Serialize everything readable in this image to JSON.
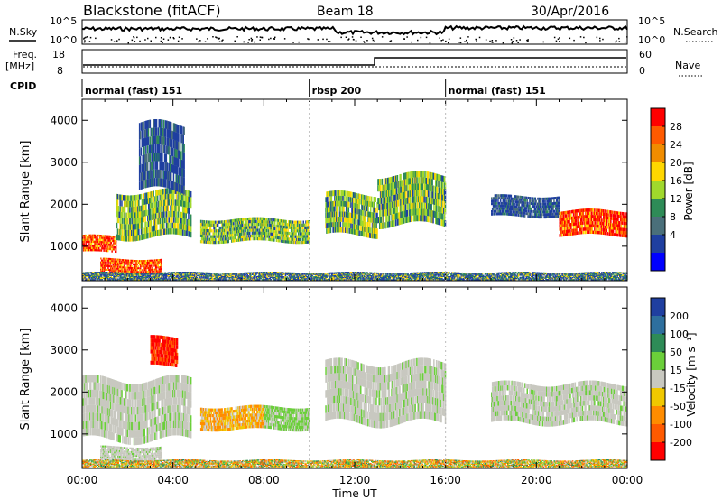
{
  "header": {
    "station": "Blackstone (fitACF)",
    "beam": "Beam 18",
    "date": "30/Apr/2016"
  },
  "labels": {
    "nsky": "N.Sky",
    "nsky_ticks": [
      "10^5",
      "10^0"
    ],
    "nsearch": "N.Search",
    "nsearch_ticks": [
      "10^5",
      "10^0"
    ],
    "freq_line1": "Freq.",
    "freq_line2": "[MHz]",
    "freq_ticks": [
      "18",
      "8"
    ],
    "nave": "Nave",
    "nave_ticks": [
      "60",
      "0"
    ],
    "cpid": "CPID"
  },
  "cpid_segments": [
    {
      "start_h": 0,
      "end_h": 10,
      "label": "normal (fast) 151"
    },
    {
      "start_h": 10,
      "end_h": 16,
      "label": "rbsp 200"
    },
    {
      "start_h": 16,
      "end_h": 24,
      "label": "normal (fast) 151"
    }
  ],
  "colorbars": {
    "power": {
      "label": "Power [dB]",
      "ticks": [
        "28",
        "24",
        "20",
        "16",
        "12",
        "8",
        "4"
      ],
      "colors": [
        "#ff0000",
        "#ff5a00",
        "#f08c00",
        "#ffd700",
        "#a0d82c",
        "#2e8b57",
        "#4a6f7a",
        "#1f3fa0",
        "#0000ff"
      ]
    },
    "velocity": {
      "label": "Velocity [m s⁻¹]",
      "ticks": [
        "200",
        "100",
        "50",
        "15",
        "-15",
        "-50",
        "-100",
        "-200"
      ],
      "colors": [
        "#1f3fa0",
        "#2e6f9e",
        "#2e8b57",
        "#6bcf3a",
        "#c8c8c0",
        "#f0c800",
        "#ff8c00",
        "#ff5a00",
        "#ff0000"
      ]
    }
  },
  "chart_data": [
    {
      "type": "heatmap",
      "title": "Power",
      "xlabel": "",
      "ylabel": "Slant Range [km]",
      "xlim": [
        0,
        24
      ],
      "ylim": [
        180,
        4500
      ],
      "yticks": [
        "4000",
        "3000",
        "2000",
        "1000"
      ],
      "echo_bands": [
        {
          "t0": 0.0,
          "t1": 1.5,
          "r0": 850,
          "r1": 1250,
          "level": "strong"
        },
        {
          "t0": 0.8,
          "t1": 3.5,
          "r0": 350,
          "r1": 700,
          "level": "strong"
        },
        {
          "t0": 1.5,
          "t1": 4.8,
          "r0": 1200,
          "r1": 2300,
          "level": "medium"
        },
        {
          "t0": 2.5,
          "t1": 4.5,
          "r0": 2300,
          "r1": 3900,
          "level": "weak"
        },
        {
          "t0": 5.2,
          "t1": 10.0,
          "r0": 1100,
          "r1": 1650,
          "level": "medium"
        },
        {
          "t0": 10.7,
          "t1": 13.0,
          "r0": 1250,
          "r1": 2250,
          "level": "medium"
        },
        {
          "t0": 13.0,
          "t1": 16.0,
          "r0": 1500,
          "r1": 2700,
          "level": "medium"
        },
        {
          "t0": 18.0,
          "t1": 21.0,
          "r0": 1700,
          "r1": 2200,
          "level": "weak"
        },
        {
          "t0": 21.0,
          "t1": 24.0,
          "r0": 1250,
          "r1": 1850,
          "level": "strong"
        },
        {
          "t0": 0.0,
          "t1": 24.0,
          "r0": 180,
          "r1": 380,
          "level": "ground"
        }
      ]
    },
    {
      "type": "heatmap",
      "title": "Velocity",
      "xlabel": "Time UT",
      "ylabel": "Slant Range [km]",
      "xlim": [
        0,
        24
      ],
      "ylim": [
        180,
        4500
      ],
      "xticks": [
        "00:00",
        "04:00",
        "08:00",
        "12:00",
        "16:00",
        "20:00",
        "00:00"
      ],
      "yticks": [
        "4000",
        "3000",
        "2000",
        "1000"
      ],
      "echo_bands": [
        {
          "t0": 0.0,
          "t1": 4.8,
          "r0": 850,
          "r1": 2300,
          "velocity": "low"
        },
        {
          "t0": 0.8,
          "t1": 3.5,
          "r0": 350,
          "r1": 700,
          "velocity": "low"
        },
        {
          "t0": 3.0,
          "t1": 4.2,
          "r0": 2600,
          "r1": 3300,
          "velocity": "-200"
        },
        {
          "t0": 5.2,
          "t1": 8.0,
          "r0": 1100,
          "r1": 1650,
          "velocity": "-50"
        },
        {
          "t0": 8.0,
          "t1": 10.0,
          "r0": 1100,
          "r1": 1650,
          "velocity": "50"
        },
        {
          "t0": 10.7,
          "t1": 16.0,
          "r0": 1250,
          "r1": 2700,
          "velocity": "low"
        },
        {
          "t0": 18.0,
          "t1": 24.0,
          "r0": 1250,
          "r1": 2200,
          "velocity": "low"
        },
        {
          "t0": 0.0,
          "t1": 24.0,
          "r0": 180,
          "r1": 380,
          "velocity": "mixed"
        }
      ]
    }
  ]
}
